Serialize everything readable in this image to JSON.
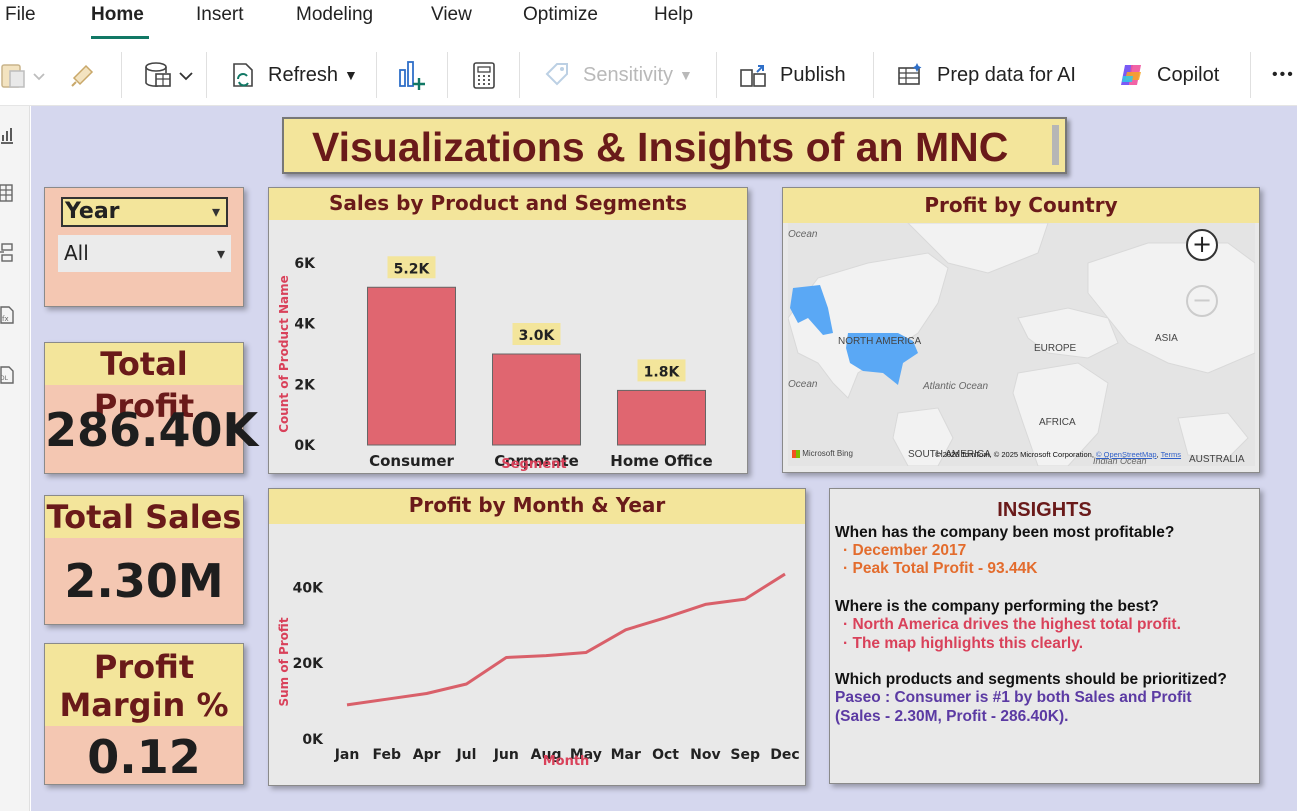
{
  "menu": {
    "items": [
      "File",
      "Home",
      "Insert",
      "Modeling",
      "View",
      "Optimize",
      "Help"
    ],
    "active": "Home"
  },
  "toolbar": {
    "refresh": "Refresh",
    "sensitivity": "Sensitivity",
    "publish": "Publish",
    "prep_ai": "Prep data for AI",
    "copilot": "Copilot",
    "more": "•••"
  },
  "report": {
    "title": "Visualizations & Insights of an MNC",
    "slicer": {
      "label": "Year",
      "selected": "All"
    },
    "kpis": {
      "total_profit": {
        "label": "Total Profit",
        "value": "286.40K"
      },
      "total_sales": {
        "label": "Total Sales",
        "value": "2.30M"
      },
      "profit_margin": {
        "label_line1": "Profit",
        "label_line2": "Margin %",
        "value": "0.12"
      }
    },
    "map": {
      "title": "Profit by Country",
      "labels": {
        "ocean_tl": "Ocean",
        "north_america": "NORTH AMERICA",
        "europe": "EUROPE",
        "asia": "ASIA",
        "ocean_ml": "Ocean",
        "atlantic": "Atlantic Ocean",
        "africa": "AFRICA",
        "south_america": "SOUTH AMERICA",
        "australia": "AUSTRALIA",
        "ocean_br": "Indian Ocean",
        "bing": "Microsoft Bing",
        "copyright": "© 2025 TomTom, © 2025 Microsoft Corporation,",
        "osm": "© OpenStreetMap",
        "terms": "Terms"
      },
      "highlight_color": "#5aa8f5"
    },
    "insights": {
      "title": "INSIGHTS",
      "q1": "When has the company been most profitable?",
      "a1_1": "December 2017",
      "a1_2": "Peak Total Profit - 93.44K",
      "q2": "Where is the company performing the best?",
      "a2_1": "North America drives the highest total profit.",
      "a2_2": "The map highlights this clearly.",
      "q3": "Which products and segments should be prioritized?",
      "a3_1": "Paseo :  Consumer is #1 by both Sales and Profit",
      "a3_2": "(Sales - 2.30M, Profit - 286.40K)."
    }
  },
  "colors": {
    "accent_green": "#117865",
    "title_bg": "#f3e59b",
    "title_text": "#6a1a1a",
    "kpi_bg": "#f4c7b2",
    "canvas_bg": "#d5d7ee",
    "bar_color": "#e06670",
    "line_color": "#d9606a"
  },
  "chart_data": [
    {
      "type": "bar",
      "title": "Sales by Product and Segments",
      "xlabel": "Segment",
      "ylabel": "Count of Product Name",
      "categories": [
        "Consumer",
        "Corporate",
        "Home Office"
      ],
      "values": [
        5200,
        3000,
        1800
      ],
      "data_labels": [
        "5.2K",
        "3.0K",
        "1.8K"
      ],
      "ylim": [
        0,
        6000
      ],
      "yticks": [
        "0K",
        "2K",
        "4K",
        "6K"
      ],
      "ytick_values": [
        0,
        2000,
        4000,
        6000
      ],
      "grid": false
    },
    {
      "type": "line",
      "title": "Profit by Month & Year",
      "xlabel": "Month",
      "ylabel": "Sum of Profit",
      "categories": [
        "Jan",
        "Feb",
        "Apr",
        "Jul",
        "Jun",
        "Aug",
        "May",
        "Mar",
        "Oct",
        "Nov",
        "Sep",
        "Dec"
      ],
      "values": [
        9000,
        10500,
        12000,
        14500,
        21500,
        22000,
        22800,
        28800,
        32000,
        35500,
        36900,
        43500
      ],
      "ylim": [
        0,
        48000
      ],
      "yticks": [
        "0K",
        "20K",
        "40K"
      ],
      "ytick_values": [
        0,
        20000,
        40000
      ],
      "grid": false
    }
  ]
}
